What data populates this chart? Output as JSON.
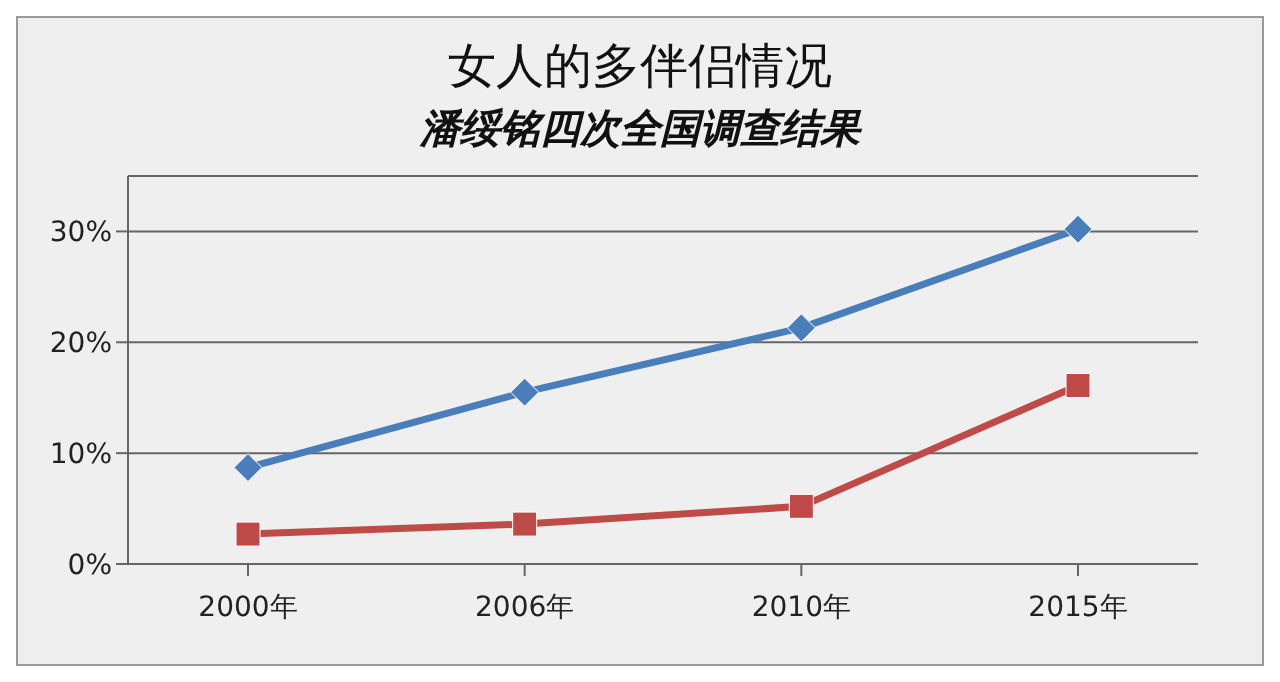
{
  "chart_data": {
    "type": "line",
    "title": "女人的多伴侣情况",
    "subtitle": "潘绥铭四次全国调查结果",
    "categories": [
      "2000年",
      "2006年",
      "2010年",
      "2015年"
    ],
    "series": [
      {
        "color": "#4a7ebb",
        "values": [
          8.7,
          15.5,
          21.3,
          30.2
        ],
        "marker": "diamond"
      },
      {
        "color": "#be4b48",
        "values": [
          2.7,
          3.6,
          5.2,
          16.1
        ],
        "marker": "square"
      }
    ],
    "ylim": [
      0,
      35
    ],
    "yticks": [
      {
        "value": 0,
        "label": "0%"
      },
      {
        "value": 10,
        "label": "10%"
      },
      {
        "value": 20,
        "label": "20%"
      },
      {
        "value": 30,
        "label": "30%"
      }
    ],
    "grid": "y",
    "line_style": "solid"
  }
}
